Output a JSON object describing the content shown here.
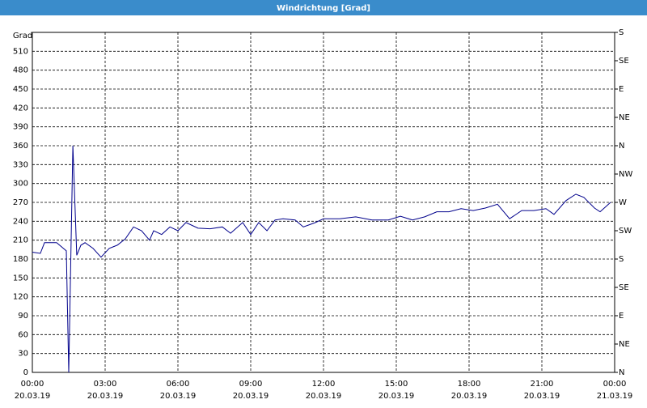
{
  "chart_data": {
    "type": "line",
    "title": "Windrichtung [Grad]",
    "y_label": "Grad",
    "x": [
      0,
      0.33,
      0.5,
      1,
      1.4,
      1.5,
      1.67,
      1.83,
      2,
      2.17,
      2.5,
      2.83,
      3.17,
      3.5,
      3.83,
      4.17,
      4.5,
      4.83,
      5,
      5.33,
      5.67,
      6,
      6.33,
      6.83,
      7.33,
      7.83,
      8.17,
      8.67,
      9,
      9.33,
      9.67,
      10,
      10.33,
      10.83,
      11.17,
      11.67,
      12,
      12.67,
      13.33,
      14,
      14.67,
      15.17,
      15.67,
      16.17,
      16.67,
      17.17,
      17.67,
      18.17,
      18.67,
      19.17,
      19.67,
      20.17,
      20.67,
      21.17,
      21.5,
      22,
      22.4,
      22.73,
      23.17,
      23.4,
      23.83
    ],
    "series": [
      {
        "name": "Windrichtung",
        "color": "#00008b",
        "values": [
          191,
          189,
          206,
          206,
          193,
          0,
          360,
          186,
          202,
          206,
          197,
          183,
          197,
          202,
          212,
          231,
          225,
          210,
          225,
          219,
          231,
          225,
          238,
          229,
          228,
          231,
          221,
          238,
          219,
          238,
          225,
          242,
          244,
          242,
          231,
          238,
          244,
          244,
          247,
          242,
          242,
          248,
          242,
          247,
          255,
          255,
          260,
          257,
          261,
          267,
          244,
          257,
          257,
          260,
          251,
          273,
          283,
          278,
          261,
          255,
          270
        ]
      }
    ],
    "xlim": [
      0,
      24
    ],
    "xticks": [
      {
        "value": 0,
        "label": "00:00"
      },
      {
        "value": 3,
        "label": "03:00"
      },
      {
        "value": 6,
        "label": "06:00"
      },
      {
        "value": 9,
        "label": "09:00"
      },
      {
        "value": 12,
        "label": "12:00"
      },
      {
        "value": 15,
        "label": "15:00"
      },
      {
        "value": 18,
        "label": "18:00"
      },
      {
        "value": 21,
        "label": "21:00"
      },
      {
        "value": 24,
        "label": "00:00"
      }
    ],
    "xtick_dates": [
      "20.03.19",
      "20.03.19",
      "20.03.19",
      "20.03.19",
      "20.03.19",
      "20.03.19",
      "20.03.19",
      "20.03.19",
      "21.03.19"
    ],
    "ylim": [
      0,
      540
    ],
    "yticks": [
      0,
      30,
      60,
      90,
      120,
      150,
      180,
      210,
      240,
      270,
      300,
      330,
      360,
      390,
      420,
      450,
      480,
      510
    ],
    "y2lim": [
      0,
      540
    ],
    "y2ticks": [
      {
        "value": 0,
        "label": "N"
      },
      {
        "value": 45,
        "label": "NE"
      },
      {
        "value": 90,
        "label": "E"
      },
      {
        "value": 135,
        "label": "SE"
      },
      {
        "value": 180,
        "label": "S"
      },
      {
        "value": 225,
        "label": "SW"
      },
      {
        "value": 270,
        "label": "W"
      },
      {
        "value": 315,
        "label": "NW"
      },
      {
        "value": 360,
        "label": "N"
      },
      {
        "value": 405,
        "label": "NE"
      },
      {
        "value": 450,
        "label": "E"
      },
      {
        "value": 495,
        "label": "SE"
      },
      {
        "value": 540,
        "label": "S"
      }
    ],
    "grid": true
  }
}
